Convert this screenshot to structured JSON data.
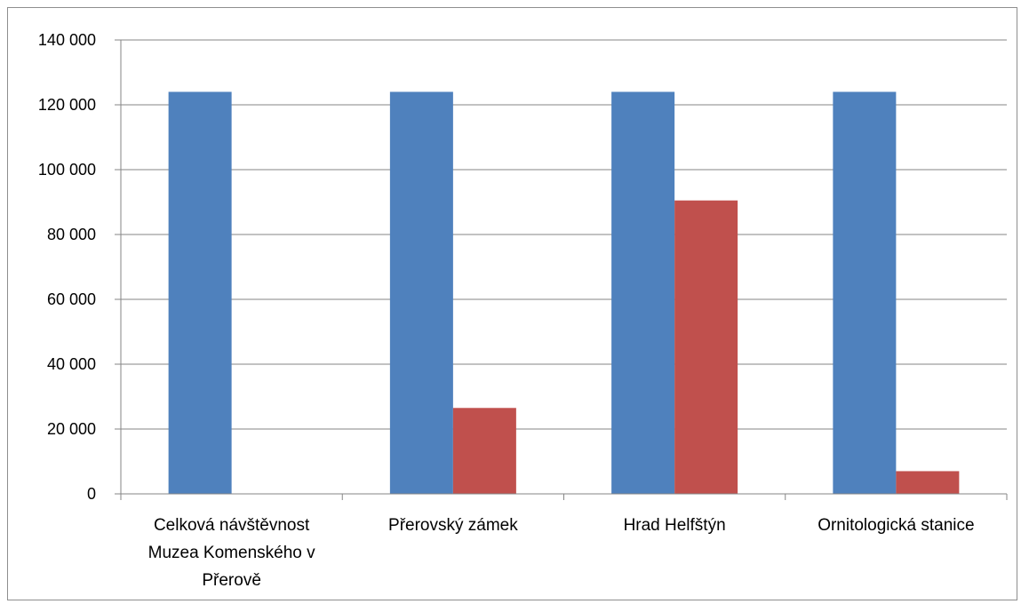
{
  "chart_data": {
    "type": "bar",
    "categories": [
      [
        "Celková návštěvnost",
        "Muzea Komenského v",
        "Přerově"
      ],
      [
        "Přerovský zámek"
      ],
      [
        "Hrad Helfštýn"
      ],
      [
        "Ornitologická stanice"
      ]
    ],
    "series": [
      {
        "color": "#4F81BD",
        "values": [
          124000,
          124000,
          124000,
          124000
        ]
      },
      {
        "color": "#C0504D",
        "values": [
          0,
          26500,
          90500,
          7000
        ]
      }
    ],
    "ylim": [
      0,
      140000
    ],
    "yticks": [
      0,
      20000,
      40000,
      60000,
      80000,
      100000,
      120000,
      140000
    ],
    "ytick_labels": [
      "0",
      "20 000",
      "40 000",
      "60 000",
      "80 000",
      "100 000",
      "120 000",
      "140 000"
    ],
    "grid": true,
    "gridline_color": "#868686",
    "legend": "none"
  }
}
